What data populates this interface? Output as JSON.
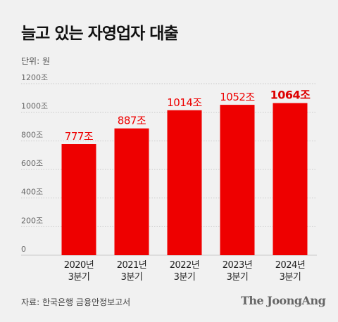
{
  "title": "늘고 있는 자영업자 대출",
  "unit_label": "단위: 원",
  "source": "자료: 한국은행 금융안정보고서",
  "logo": "The JoongAng",
  "colors": {
    "bar": "#ee0000",
    "bar_label": "#ee0000",
    "last_bar_label": "#dd0000",
    "grid": "#c9c9c9",
    "axis_text": "#666666",
    "category_text": "#222222"
  },
  "chart_data": {
    "type": "bar",
    "categories": [
      [
        "2020년",
        "3분기"
      ],
      [
        "2021년",
        "3분기"
      ],
      [
        "2022년",
        "3분기"
      ],
      [
        "2023년",
        "3분기"
      ],
      [
        "2024년",
        "3분기"
      ]
    ],
    "values": [
      777,
      887,
      1014,
      1052,
      1064
    ],
    "value_labels": [
      "777조",
      "887조",
      "1014조",
      "1052조",
      "1064조"
    ],
    "y_ticks": [
      0,
      200,
      400,
      600,
      800,
      1000,
      1200
    ],
    "y_tick_labels": [
      "0",
      "200조",
      "400조",
      "600조",
      "800조",
      "1000조",
      "1200조"
    ],
    "ylim": [
      0,
      1200
    ],
    "grid": true,
    "emphasized_bar": 4
  }
}
